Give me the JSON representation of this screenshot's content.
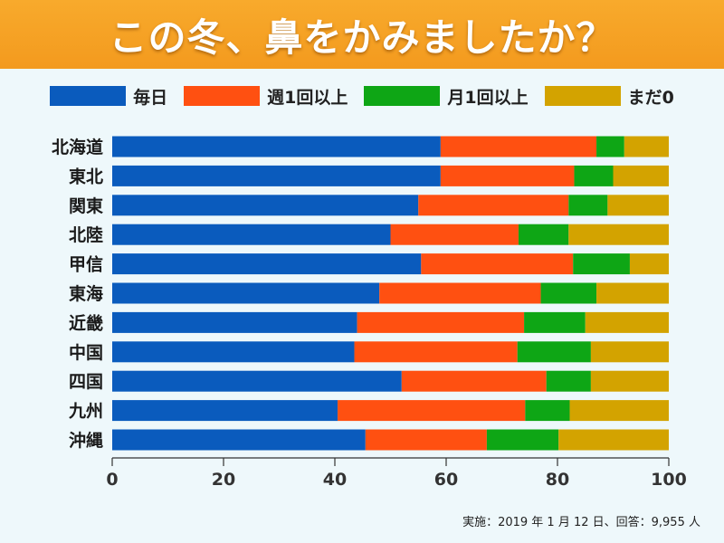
{
  "title": "この冬、鼻をかみましたか？",
  "chart_data": {
    "type": "bar",
    "orientation": "horizontal-stacked",
    "categories": [
      "北海道",
      "東北",
      "関東",
      "北陸",
      "甲信",
      "東海",
      "近畿",
      "中国",
      "四国",
      "九州",
      "沖縄"
    ],
    "series": [
      {
        "name": "毎日",
        "color": "#0a5bbd",
        "values": [
          59,
          59,
          55,
          50,
          55.5,
          48,
          44,
          43.5,
          52,
          40.5,
          45.5
        ]
      },
      {
        "name": "週1回以上",
        "color": "#ff5011",
        "values": [
          28,
          24,
          27,
          23,
          27.3,
          29,
          30,
          29.3,
          26,
          33.7,
          21.8
        ]
      },
      {
        "name": "月1回以上",
        "color": "#0ea615",
        "values": [
          5,
          7,
          7,
          9,
          10.2,
          10,
          11,
          13.2,
          8,
          8,
          12.9
        ]
      },
      {
        "name": "まだ0",
        "color": "#d3a300",
        "values": [
          8,
          10,
          11,
          18,
          7,
          13,
          15,
          14,
          14,
          17.8,
          19.8
        ]
      }
    ],
    "xlim": [
      0,
      100
    ],
    "xticks": [
      0,
      20,
      40,
      60,
      80,
      100
    ],
    "legend_position": "top"
  },
  "footnote": "実施：2019 年 1 月 12 日、回答：9,955 人"
}
